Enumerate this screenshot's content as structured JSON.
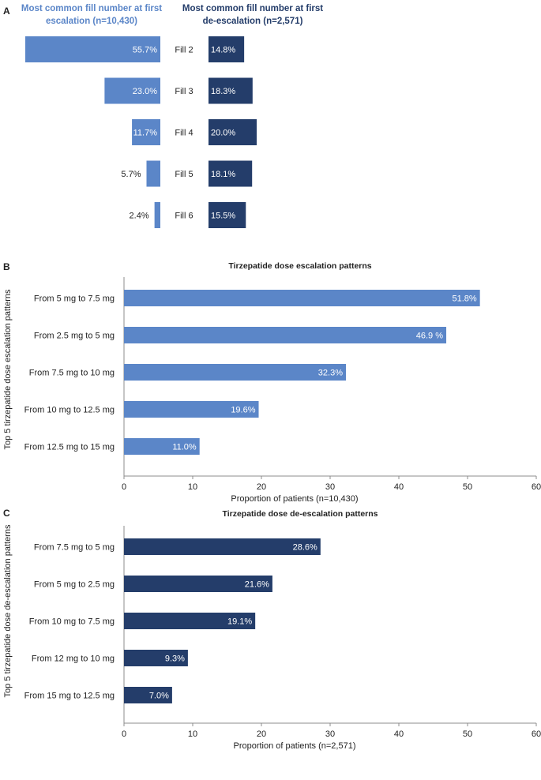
{
  "colors": {
    "escalation": "#5b86c8",
    "deescalation": "#243d6a",
    "axis": "#8c8c8c",
    "text": "#222222",
    "label_inside": "#ffffff"
  },
  "panels": {
    "a_label": "A",
    "b_label": "B",
    "c_label": "C"
  },
  "chart_data": [
    {
      "id": "A",
      "type": "bar",
      "orientation": "horizontal-butterfly",
      "categories": [
        "Fill 2",
        "Fill 3",
        "Fill 4",
        "Fill 5",
        "Fill 6"
      ],
      "series": [
        {
          "name": "Most common fill number at first escalation (n=10,430)",
          "values": [
            55.7,
            23.0,
            11.7,
            5.7,
            2.4
          ],
          "labels": [
            "55.7%",
            "23.0%",
            "11.7%",
            "5.7%",
            "2.4%"
          ]
        },
        {
          "name": "Most common fill number at first de-escalation (n=2,571)",
          "values": [
            14.8,
            18.3,
            20.0,
            18.1,
            15.5
          ],
          "labels": [
            "14.8%",
            "18.3%",
            "20.0%",
            "18.1%",
            "15.5%"
          ]
        }
      ]
    },
    {
      "id": "B",
      "type": "bar",
      "orientation": "horizontal",
      "title": "Tirzepatide dose escalation patterns",
      "xlabel": "Proportion of patients (n=10,430)",
      "ylabel": "Top 5 tirzepatide dose escalation patterns",
      "categories": [
        "From 5 mg to 7.5 mg",
        "From 2.5 mg to 5 mg",
        "From 7.5 mg to 10 mg",
        "From 10 mg to 12.5 mg",
        "From 12.5 mg to 15 mg"
      ],
      "values": [
        51.8,
        46.9,
        32.3,
        19.6,
        11.0
      ],
      "labels": [
        "51.8%",
        "46.9 %",
        "32.3%",
        "19.6%",
        "11.0%"
      ],
      "xlim": [
        0,
        60
      ],
      "xticks": [
        "0",
        "10",
        "20",
        "30",
        "40",
        "50",
        "60"
      ]
    },
    {
      "id": "C",
      "type": "bar",
      "orientation": "horizontal",
      "title": "Tirzepatide dose de-escalation patterns",
      "xlabel": "Proportion of patients (n=2,571)",
      "ylabel": "Top 5 tirzepatide dose de-escalation patterns",
      "categories": [
        "From 7.5 mg to 5 mg",
        "From 5 mg to 2.5 mg",
        "From 10 mg to 7.5 mg",
        "From 12 mg to 10 mg",
        "From 15 mg to 12.5 mg"
      ],
      "values": [
        28.6,
        21.6,
        19.1,
        9.3,
        7.0
      ],
      "labels": [
        "28.6%",
        "21.6%",
        "19.1%",
        "9.3%",
        "7.0%"
      ],
      "xlim": [
        0,
        60
      ],
      "xticks": [
        "0",
        "10",
        "20",
        "30",
        "40",
        "50",
        "60"
      ]
    }
  ]
}
